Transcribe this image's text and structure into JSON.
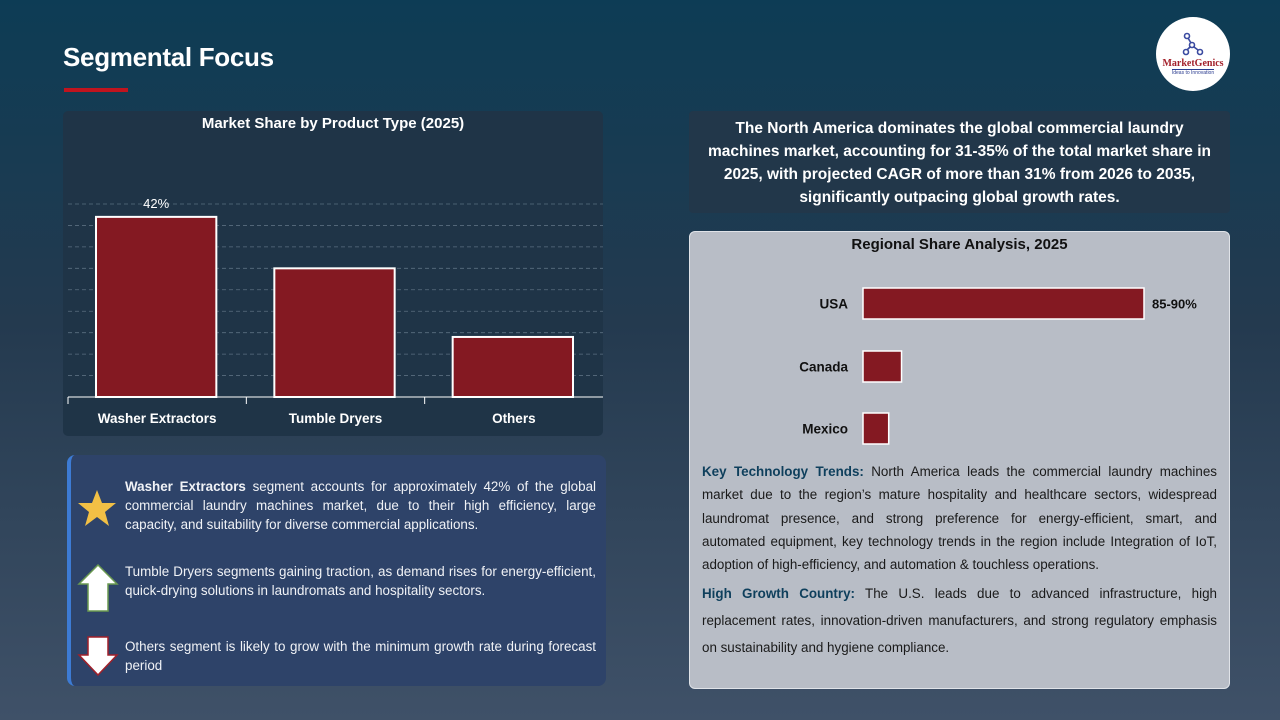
{
  "page": {
    "title": "Segmental Focus"
  },
  "logo": {
    "name": "MarketGenics",
    "tagline": "Ideas to Innovation"
  },
  "chart_data": [
    {
      "type": "bar",
      "title": "Market Share by Product Type (2025)",
      "categories": [
        "Washer Extractors",
        "Tumble Dryers",
        "Others"
      ],
      "values": [
        42,
        30,
        14
      ],
      "data_labels": [
        "42%",
        "",
        ""
      ],
      "unit": "%",
      "ylim": [
        0,
        45
      ],
      "grid": true,
      "bar_color": "#841922"
    },
    {
      "type": "bar",
      "orientation": "horizontal",
      "title": "Regional Share Analysis, 2025",
      "categories": [
        "USA",
        "Canada",
        "Mexico"
      ],
      "values": [
        87.5,
        12,
        8
      ],
      "data_labels": [
        "85-90%",
        "",
        ""
      ],
      "unit": "%",
      "grid": false,
      "bar_color": "#841922"
    }
  ],
  "segments": [
    {
      "icon": "star-icon",
      "bold": "Washer Extractors",
      "text": " segment accounts for approximately 42% of the global commercial laundry machines market, due to their high efficiency, large capacity, and suitability for diverse commercial applications."
    },
    {
      "icon": "arrow-up-icon",
      "bold": "",
      "text": "Tumble Dryers segments gaining traction, as demand rises for energy-efficient, quick-drying solutions in laundromats and hospitality sectors."
    },
    {
      "icon": "arrow-down-icon",
      "bold": "",
      "text": "Others segment is likely to grow with the minimum growth rate during forecast period"
    }
  ],
  "highlight": "The North America dominates the global commercial laundry machines market, accounting for 31-35% of the total market share in 2025, with projected CAGR of more than 31% from 2026 to 2035, significantly outpacing global growth rates.",
  "regional": {
    "trends_label": "Key Technology Trends:",
    "trends_text": " North America leads the commercial laundry machines market due to the region’s mature hospitality and healthcare sectors, widespread laundromat presence, and strong preference for energy-efficient, smart, and automated equipment, key technology trends in the region include Integration of IoT, adoption of high-efficiency, and automation & touchless operations.",
    "growth_label": "High Growth Country:",
    "growth_text": " The U.S. leads due to advanced infrastructure, high replacement rates, innovation-driven manufacturers, and strong regulatory emphasis on sustainability and hygiene compliance."
  }
}
